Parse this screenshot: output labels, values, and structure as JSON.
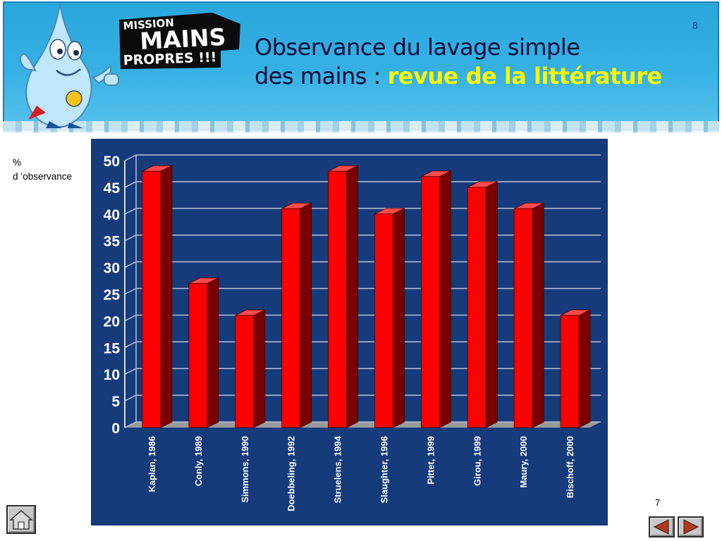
{
  "header": {
    "logo_text": [
      "MISSION",
      "MAINS",
      "PROPRES !!!"
    ],
    "page_number": "8",
    "title_line1": "Observance du lavage simple",
    "title_line2_prefix": "des mains  : ",
    "title_highlight": "revue de la littérature"
  },
  "y_label_line1": "%",
  "y_label_line2": "d ’observance",
  "footer": {
    "page_number": "7"
  },
  "colors": {
    "bar_front": "#ff0000",
    "bar_side": "#7a0000",
    "bar_top": "#ff4a4a",
    "panel_bg": "#153b7b",
    "title_highlight": "#f7f703"
  },
  "chart_data": {
    "type": "bar",
    "categories": [
      "Kaplan, 1986",
      "Conly, 1989",
      "Simmons, 1990",
      "Doebbeling, 1992",
      "Struelens, 1994",
      "Slaughter, 1996",
      "Pittet, 1999",
      "Girou, 1999",
      "Maury, 2000",
      "Bischoff, 2000"
    ],
    "values": [
      48,
      27,
      21,
      41,
      48,
      40,
      47,
      45,
      41,
      21
    ],
    "y_ticks": [
      "0",
      "5",
      "10",
      "15",
      "20",
      "25",
      "30",
      "35",
      "40",
      "45",
      "50"
    ],
    "ylim": [
      0,
      50
    ],
    "grid": true,
    "legend": "none"
  }
}
